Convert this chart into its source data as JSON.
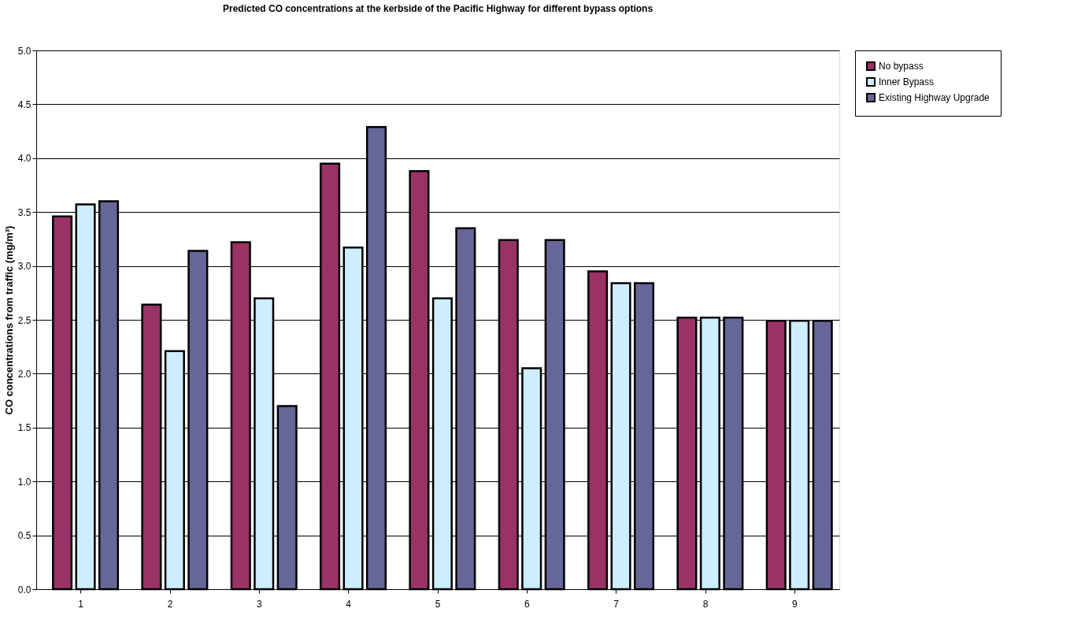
{
  "chart_data": {
    "type": "bar",
    "title": "Predicted CO concentrations at the  kerbside of the Pacific Highway for different bypass options",
    "ylabel": "CO concentrations from traffic (mg/m³)",
    "categories": [
      "1",
      "2",
      "3",
      "4",
      "5",
      "6",
      "7",
      "8",
      "9"
    ],
    "series": [
      {
        "name": "No bypass",
        "color": "#993366",
        "values": [
          3.46,
          2.64,
          3.22,
          3.95,
          3.88,
          3.24,
          2.95,
          2.52,
          2.49
        ]
      },
      {
        "name": "Inner Bypass",
        "color": "#cceeff",
        "values": [
          3.57,
          2.21,
          2.7,
          3.17,
          2.7,
          2.05,
          2.84,
          2.52,
          2.49
        ]
      },
      {
        "name": "Existing Highway Upgrade",
        "color": "#666699",
        "values": [
          3.6,
          3.14,
          1.7,
          4.29,
          3.35,
          3.24,
          2.84,
          2.52,
          2.49
        ]
      }
    ],
    "ylim": [
      0,
      5
    ],
    "yticks": [
      {
        "value": 0,
        "label": "0.0"
      },
      {
        "value": 0.5,
        "label": "0.5"
      },
      {
        "value": 1,
        "label": "1.0"
      },
      {
        "value": 1.5,
        "label": "1.5"
      },
      {
        "value": 2,
        "label": "2.0"
      },
      {
        "value": 2.5,
        "label": "2.5"
      },
      {
        "value": 3,
        "label": "3.0"
      },
      {
        "value": 3.5,
        "label": "3.5"
      },
      {
        "value": 4,
        "label": "4.0"
      },
      {
        "value": 4.5,
        "label": "4.5"
      },
      {
        "value": 5,
        "label": "5.0"
      }
    ],
    "grid": "y",
    "legend": "right"
  }
}
